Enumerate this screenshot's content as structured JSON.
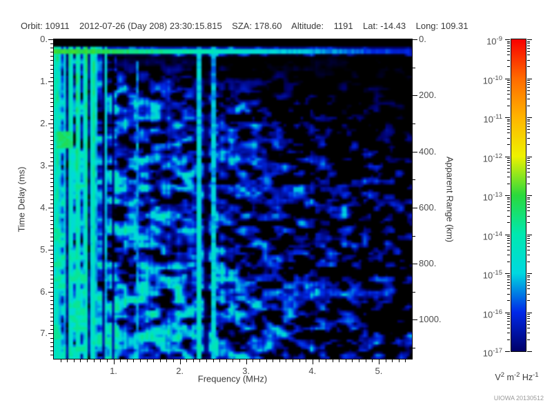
{
  "header": {
    "full_text": "Orbit: 10911    2012-07-26 (Day 208) 23:30:15.815    SZA: 178.60    Altitude:    1191    Lat: -14.43    Long: 109.31",
    "orbit": "10911",
    "date": "2012-07-26",
    "day_of_year": "208",
    "time": "23:30:15.815",
    "sza": "178.60",
    "altitude": "1191",
    "lat": "-14.43",
    "long": "109.31"
  },
  "watermark": "UIOWA 20130512",
  "chart_data": {
    "type": "heatmap",
    "description": "Radar-sounder ionogram spectrogram: received spectral density (color, log scale) versus sounding frequency (x) and echo time delay (y, increasing downward), with equivalent apparent range on the right axis.",
    "x_axis": {
      "label": "Frequency (MHz)",
      "min": 0.1,
      "max": 5.5,
      "major_ticks": [
        1,
        2,
        3,
        4,
        5
      ],
      "tick_labels": [
        "1.",
        "2.",
        "3.",
        "4.",
        "5."
      ],
      "minor_tick_step": 0.1
    },
    "y_axis": {
      "label": "Time Delay (ms)",
      "min": 0.0,
      "max": 7.6,
      "direction": "down",
      "major_ticks": [
        0,
        1,
        2,
        3,
        4,
        5,
        6,
        7
      ],
      "tick_labels": [
        "0.",
        "1.",
        "2.",
        "3.",
        "4.",
        "5.",
        "6.",
        "7."
      ],
      "minor_tick_step": 0.1
    },
    "y2_axis": {
      "label": "Apparent Range (km)",
      "min": 0,
      "max": 1139,
      "major_ticks": [
        0,
        200,
        400,
        600,
        800,
        1000
      ],
      "tick_labels": [
        "0.",
        "200.",
        "400.",
        "600.",
        "800.",
        "1000."
      ],
      "minor_tick_step": 100
    },
    "colorbar": {
      "scale": "log10",
      "tick_exponents": [
        "-9",
        "-10",
        "-11",
        "-12",
        "-13",
        "-14",
        "-15",
        "-16",
        "-17"
      ],
      "unit_parts": [
        {
          "base": "V",
          "exp": "2"
        },
        {
          "base": "m",
          "exp": "-2"
        },
        {
          "base": "Hz",
          "exp": "-1"
        }
      ],
      "stops": [
        {
          "pos": 0.0,
          "color": "#000068"
        },
        {
          "pos": 0.125,
          "color": "#0028e8"
        },
        {
          "pos": 0.25,
          "color": "#00d8e0"
        },
        {
          "pos": 0.375,
          "color": "#00e8b0"
        },
        {
          "pos": 0.5,
          "color": "#2ad93c"
        },
        {
          "pos": 0.625,
          "color": "#eef200"
        },
        {
          "pos": 0.75,
          "color": "#ffb400"
        },
        {
          "pos": 0.875,
          "color": "#ff6a00"
        },
        {
          "pos": 1.0,
          "color": "#f80000"
        }
      ]
    },
    "features": {
      "no_signal_top": {
        "t_ms": [
          0,
          0.16
        ],
        "note": "black band (no echo) at the very top of the plot"
      },
      "echo_band": {
        "t_ms": [
          0.17,
          0.36
        ],
        "peak_t_ms": 0.255,
        "note": "bright horizontal echo trace across all frequencies; green/cyan (~1e-13) at low frequency fading to faint blue (~1e-16) above ~4 MHz"
      },
      "plasma_striations": {
        "f_mhz": [
          0.1,
          1.0
        ],
        "note": "bright vertical green/cyan striations spanning all delays below ~1 MHz (local plasma resonances), interleaved with dark columns"
      },
      "bright_patch": {
        "f_mhz": [
          0.12,
          0.38
        ],
        "t_ms": [
          2.2,
          2.6
        ],
        "note": "bright green patch at low frequency near 2.4 ms"
      },
      "interference_lines_mhz": [
        2.3,
        2.5
      ],
      "interference_gap_mhz": [
        2.35,
        2.44
      ],
      "faint_line_mhz": 1.35,
      "background": {
        "note": "diffuse mottled blue noise (~1e-16.5 to ~1e-14.5), denser and brighter at longer delays and lower frequencies; mostly black (below 1e-17) at short delays above ~2 MHz, the dark region widening with frequency"
      }
    }
  }
}
